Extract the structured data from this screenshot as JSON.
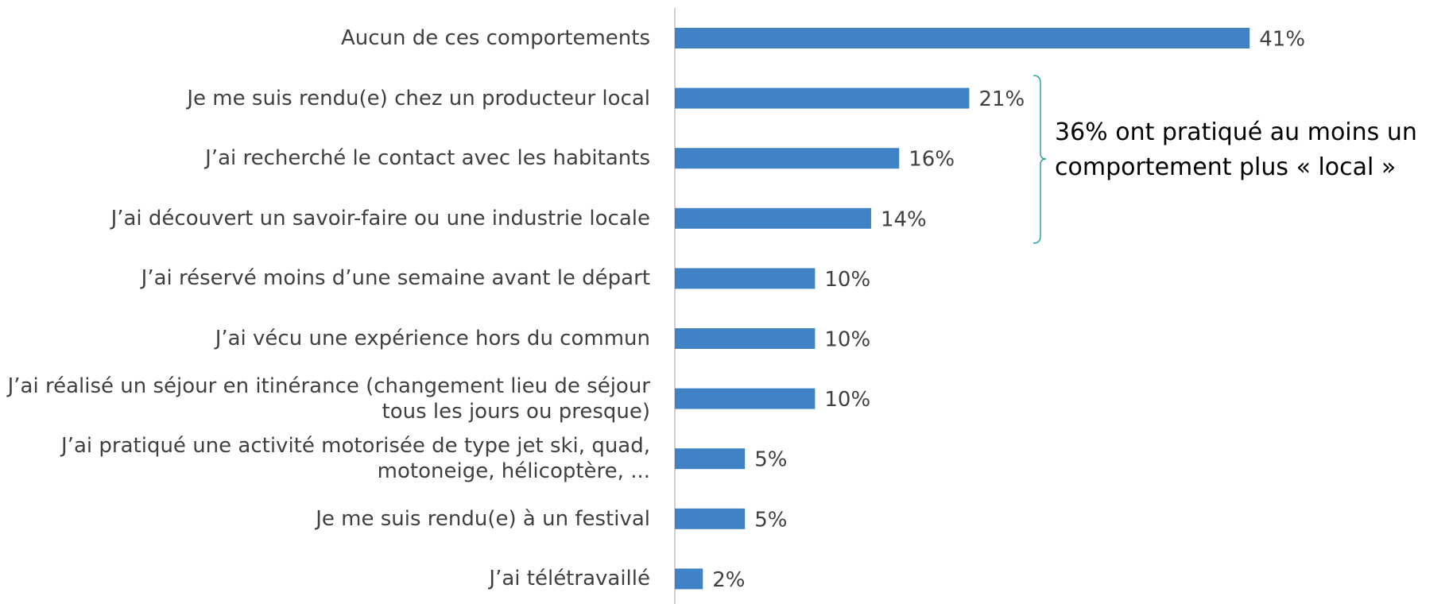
{
  "chart_data": {
    "type": "bar",
    "orientation": "horizontal",
    "categories": [
      "Aucun de ces comportements",
      "Je me suis rendu(e) chez un producteur local",
      "J’ai recherché le contact avec les habitants",
      "J’ai découvert un savoir-faire ou une industrie locale",
      "J’ai réservé moins d’une semaine avant le départ",
      "J’ai vécu une expérience hors du commun",
      "J’ai réalisé un séjour en itinérance (changement lieu de séjour tous les jours ou presque)",
      "J’ai pratiqué une activité motorisée de type jet ski, quad, motoneige, hélicoptère, ...",
      "Je me suis rendu(e) à un festival",
      "J’ai télétravaillé"
    ],
    "values": [
      41,
      21,
      16,
      14,
      10,
      10,
      10,
      5,
      5,
      2
    ],
    "value_labels": [
      "41%",
      "21%",
      "16%",
      "14%",
      "10%",
      "10%",
      "10%",
      "5%",
      "5%",
      "2%"
    ],
    "color": "#3f83c6",
    "annotation": "36% ont pratiqué au moins un comportement plus « local »"
  }
}
